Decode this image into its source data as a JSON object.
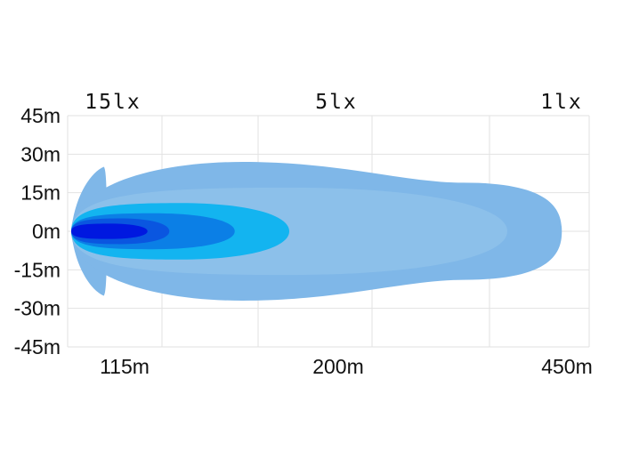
{
  "chart_data": {
    "type": "area",
    "title": "",
    "xlabel": "",
    "ylabel": "",
    "ylim": [
      -45,
      45
    ],
    "grid": true,
    "y_ticks": [
      "45m",
      "30m",
      "15m",
      "0m",
      "-15m",
      "-30m",
      "-45m"
    ],
    "x_tick_labels": [
      {
        "label": "115m",
        "x": 115
      },
      {
        "label": "200m",
        "x": 200
      },
      {
        "label": "450m",
        "x": 450
      }
    ],
    "lux_labels": [
      {
        "label": "15lx",
        "x": 115
      },
      {
        "label": "5lx",
        "x": 200
      },
      {
        "label": "1lx",
        "x": 450
      }
    ],
    "contours": [
      {
        "color": "#7fb7e8",
        "reach": 450,
        "half_width": 27
      },
      {
        "color": "#8cc0ea",
        "reach": 400,
        "half_width": 17
      },
      {
        "color": "#13b4f0",
        "reach": 200,
        "half_width": 11
      },
      {
        "color": "#0b7fe6",
        "reach": 150,
        "half_width": 7
      },
      {
        "color": "#0a56e0",
        "reach": 90,
        "half_width": 5
      },
      {
        "color": "#0018e0",
        "reach": 70,
        "half_width": 3
      }
    ],
    "side_lobe": {
      "color": "#7fb7e8",
      "reach": 30,
      "half_width": 23
    }
  }
}
